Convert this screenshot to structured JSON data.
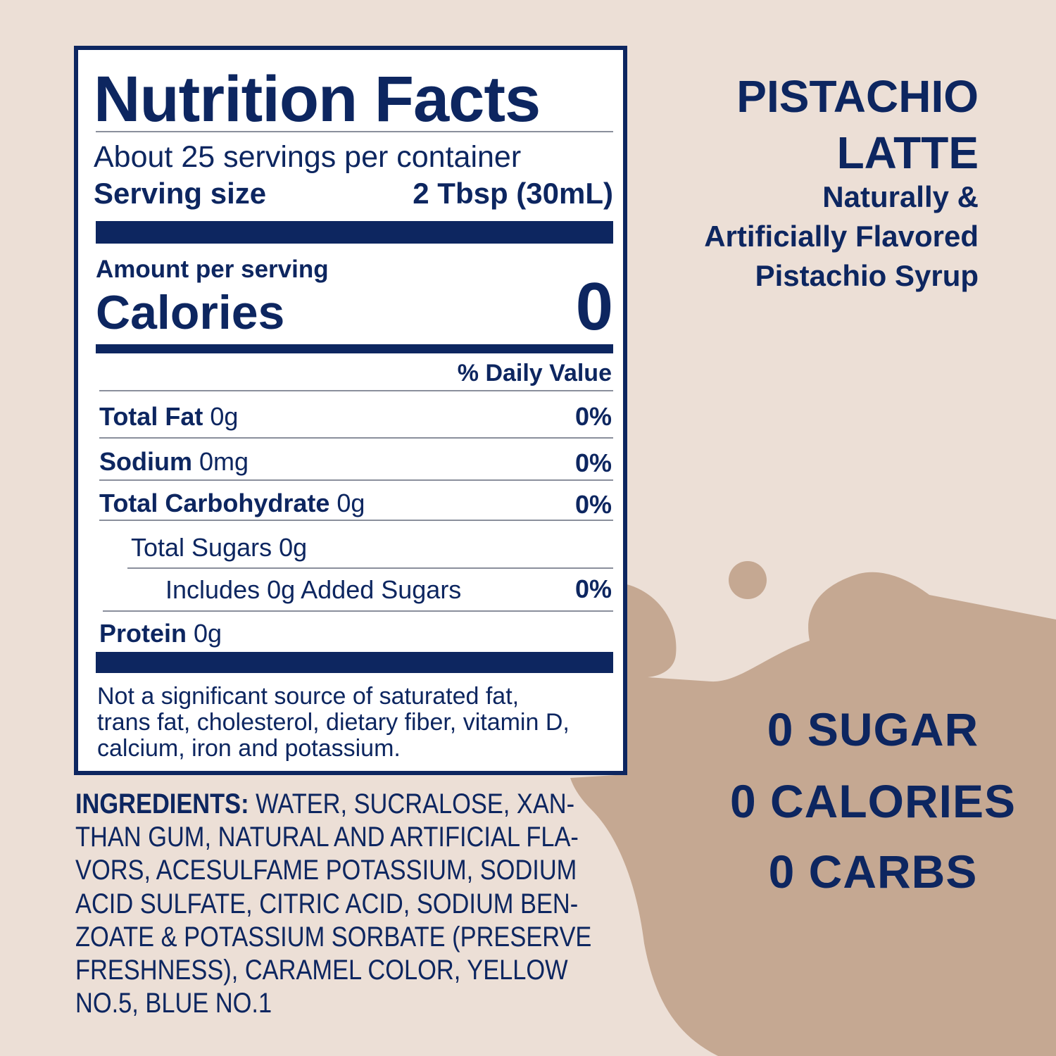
{
  "colors": {
    "background": "#ecdfd6",
    "splash": "#c5a892",
    "navy": "#0d2660"
  },
  "label": {
    "title": "Nutrition Facts",
    "servings": "About 25 servings per container",
    "serving_size_label": "Serving size",
    "serving_size_value": "2 Tbsp (30mL)",
    "amount_per_serving": "Amount per serving",
    "calories_label": "Calories",
    "calories_value": "0",
    "daily_value_header": "% Daily Value",
    "rows": [
      {
        "name": "Total Fat",
        "amount": "0g",
        "dv": "0%"
      },
      {
        "name": "Sodium",
        "amount": "0mg",
        "dv": "0%"
      },
      {
        "name": "Total Carbohydrate",
        "amount": "0g",
        "dv": "0%"
      },
      {
        "name": "Total Sugars 0g",
        "amount": "",
        "dv": ""
      },
      {
        "name": "Includes 0g Added Sugars",
        "amount": "",
        "dv": "0%"
      },
      {
        "name": "Protein",
        "amount": "0g",
        "dv": ""
      }
    ],
    "footnote": [
      "Not a significant source of saturated fat,",
      "trans fat, cholesterol, dietary fiber, vitamin D,",
      "calcium, iron and potassium."
    ]
  },
  "ingredients": {
    "label": "INGREDIENTS:",
    "lines": [
      " WATER, SUCRALOSE, XAN-",
      "THAN GUM, NATURAL AND ARTIFICIAL FLA-",
      "VORS, ACESULFAME POTASSIUM, SODIUM",
      "ACID SULFATE, CITRIC ACID, SODIUM BEN-",
      "ZOATE & POTASSIUM SORBATE (PRESERVE",
      "FRESHNESS), CARAMEL COLOR, YELLOW",
      "NO.5, BLUE NO.1"
    ]
  },
  "product": {
    "name_line1": "PISTACHIO",
    "name_line2": "LATTE",
    "desc": [
      "Naturally &",
      "Artificially Flavored",
      "Pistachio Syrup"
    ]
  },
  "claims": [
    "0 SUGAR",
    "0 CALORIES",
    "0 CARBS"
  ]
}
